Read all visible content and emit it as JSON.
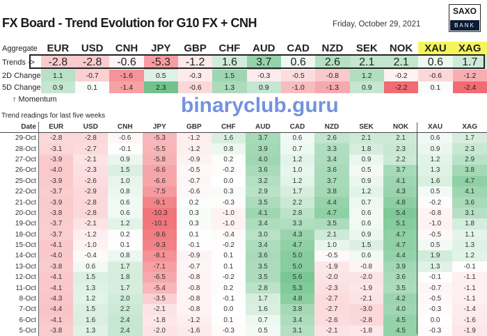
{
  "header": {
    "title": "FX Board - Trend Evolution for G10 FX + CNH",
    "date": "Friday, October 29, 2021",
    "logo_top": "SAXO",
    "logo_bottom": "BANK"
  },
  "currencies": [
    "EUR",
    "USD",
    "CNH",
    "JPY",
    "GBP",
    "CHF",
    "AUD",
    "CAD",
    "NZD",
    "SEK",
    "NOK",
    "XAU",
    "XAG"
  ],
  "aggregate": {
    "label": "Aggregate",
    "trends_label": "Trends ->",
    "trends": [
      "-2.8",
      "-2.8",
      "-0.6",
      "-5.3",
      "-1.2",
      "1.6",
      "3.7",
      "0.6",
      "2.6",
      "2.1",
      "2.1",
      "0.6",
      "1.7"
    ],
    "change2d_label": "2D Change",
    "change2d": [
      "1.1",
      "-0.7",
      "-1.6",
      "0.5",
      "-0.3",
      "1.5",
      "-0.3",
      "-0.5",
      "-0.8",
      "1.2",
      "-0.2",
      "-0.6",
      "-1.2"
    ],
    "change5d_label": "5D Change",
    "change5d": [
      "0.9",
      "0.1",
      "-1.4",
      "2.3",
      "-0.6",
      "1.3",
      "0.9",
      "-1.0",
      "-1.3",
      "0.9",
      "-2.2",
      "0.1",
      "-2.4"
    ],
    "momentum_label": "↑ Momentum"
  },
  "colors": {
    "positive": "#57b878",
    "negative": "#ef5b62",
    "highlight": "#f5f55a"
  },
  "history": {
    "caption": "Trend readings for last five weeks",
    "date_header": "Date",
    "rows": [
      {
        "date": "29-Oct",
        "values": [
          "-2.8",
          "-2.8",
          "-0.6",
          "-5.3",
          "-1.2",
          "1.6",
          "3.7",
          "0.6",
          "2.6",
          "2.1",
          "2.1",
          "0.6",
          "1.7"
        ]
      },
      {
        "date": "28-Oct",
        "values": [
          "-3.1",
          "-2.7",
          "-0.1",
          "-5.5",
          "-1.2",
          "0.8",
          "3.9",
          "0.7",
          "3.3",
          "1.8",
          "2.3",
          "0.9",
          "2.3"
        ]
      },
      {
        "date": "27-Oct",
        "values": [
          "-3.9",
          "-2.1",
          "0.9",
          "-5.8",
          "-0.9",
          "0.2",
          "4.0",
          "1.2",
          "3.4",
          "0.9",
          "2.2",
          "1.2",
          "2.9"
        ]
      },
      {
        "date": "26-Oct",
        "values": [
          "-4.0",
          "-2.3",
          "1.5",
          "-6.6",
          "-0.5",
          "-0.2",
          "3.6",
          "1.0",
          "3.6",
          "0.5",
          "3.7",
          "1.3",
          "3.8"
        ]
      },
      {
        "date": "25-Oct",
        "values": [
          "-3.9",
          "-2.6",
          "1.0",
          "-6.6",
          "-0.7",
          "0.0",
          "3.2",
          "1.2",
          "3.7",
          "0.9",
          "4.1",
          "1.6",
          "4.7"
        ]
      },
      {
        "date": "22-Oct",
        "values": [
          "-3.7",
          "-2.9",
          "0.8",
          "-7.5",
          "-0.6",
          "0.3",
          "2.9",
          "1.7",
          "3.8",
          "1.2",
          "4.3",
          "0.5",
          "4.1"
        ]
      },
      {
        "date": "21-Oct",
        "values": [
          "-3.9",
          "-2.8",
          "0.6",
          "-9.1",
          "0.2",
          "-0.3",
          "3.5",
          "2.2",
          "4.4",
          "0.7",
          "4.8",
          "-0.2",
          "3.6"
        ]
      },
      {
        "date": "20-Oct",
        "values": [
          "-3.8",
          "-2.8",
          "0.6",
          "-10.3",
          "0.3",
          "-1.0",
          "4.1",
          "2.8",
          "4.7",
          "0.6",
          "5.4",
          "-0.8",
          "3.1"
        ]
      },
      {
        "date": "19-Oct",
        "values": [
          "-3.7",
          "-2.1",
          "1.2",
          "-10.1",
          "0.3",
          "-1.0",
          "3.4",
          "3.3",
          "3.5",
          "0.6",
          "5.1",
          "-1.0",
          "1.8"
        ]
      },
      {
        "date": "18-Oct",
        "values": [
          "-3.7",
          "-1.2",
          "0.2",
          "-9.6",
          "0.1",
          "-0.4",
          "3.0",
          "4.3",
          "2.1",
          "0.9",
          "4.7",
          "-0.5",
          "1.1"
        ]
      },
      {
        "date": "15-Oct",
        "values": [
          "-4.1",
          "-1.0",
          "0.1",
          "-9.3",
          "-0.1",
          "-0.2",
          "3.4",
          "4.7",
          "1.0",
          "1.5",
          "4.7",
          "0.5",
          "1.3"
        ]
      },
      {
        "date": "14-Oct",
        "values": [
          "-4.0",
          "-0.4",
          "0.8",
          "-8.1",
          "-0.9",
          "0.1",
          "3.6",
          "5.0",
          "-0.5",
          "0.6",
          "4.4",
          "1.9",
          "1.2"
        ]
      },
      {
        "date": "13-Oct",
        "values": [
          "-3.8",
          "0.6",
          "1.7",
          "-7.1",
          "-0.7",
          "0.1",
          "3.5",
          "5.0",
          "-1.9",
          "-0.8",
          "3.9",
          "1.3",
          "-0.1"
        ]
      },
      {
        "date": "12-Oct",
        "values": [
          "-4.1",
          "1.5",
          "1.8",
          "-6.5",
          "-0.8",
          "-0.2",
          "3.5",
          "5.6",
          "-2.0",
          "-2.0",
          "3.6",
          "-0.1",
          "-1.1"
        ]
      },
      {
        "date": "11-Oct",
        "values": [
          "-4.1",
          "1.3",
          "1.7",
          "-5.4",
          "-0.8",
          "0.2",
          "2.8",
          "5.3",
          "-2.3",
          "-1.9",
          "3.5",
          "-0.7",
          "-1.1"
        ]
      },
      {
        "date": "8-Oct",
        "values": [
          "-4.3",
          "1.2",
          "2.0",
          "-3.5",
          "-0.8",
          "-0.1",
          "1.7",
          "4.8",
          "-2.7",
          "-2.1",
          "4.2",
          "-0.5",
          "-1.1"
        ]
      },
      {
        "date": "7-Oct",
        "values": [
          "-4.4",
          "1.5",
          "2.2",
          "-2.1",
          "-0.8",
          "0.0",
          "1.6",
          "3.8",
          "-2.7",
          "-3.0",
          "4.0",
          "-0.3",
          "-1.4"
        ]
      },
      {
        "date": "6-Oct",
        "values": [
          "-4.1",
          "1.6",
          "2.4",
          "-1.8",
          "-1.2",
          "0.1",
          "0.7",
          "3.4",
          "-2.6",
          "-2.8",
          "4.5",
          "0.0",
          "-1.6"
        ]
      },
      {
        "date": "5-Oct",
        "values": [
          "-3.8",
          "1.3",
          "2.4",
          "-2.0",
          "-1.6",
          "-0.3",
          "0.5",
          "3.1",
          "-2.1",
          "-1.8",
          "4.5",
          "-0.3",
          "-1.9"
        ]
      }
    ]
  },
  "watermark": "binaryclub.guru"
}
